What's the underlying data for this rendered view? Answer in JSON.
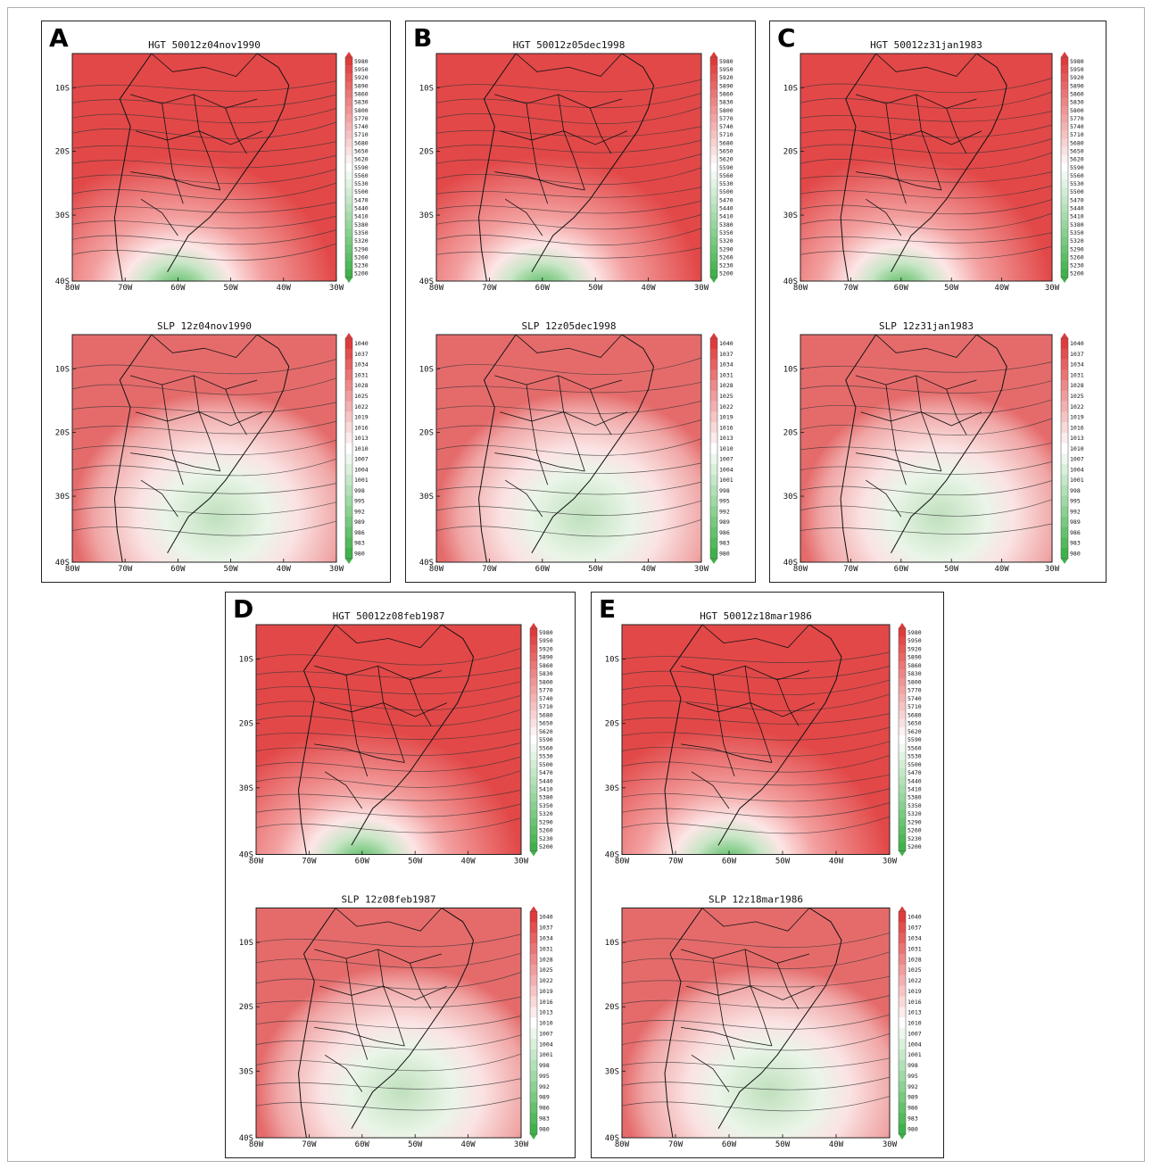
{
  "lon_ticks": [
    "80W",
    "70W",
    "60W",
    "50W",
    "40W",
    "30W"
  ],
  "lat_ticks": [
    "10S",
    "20S",
    "30S",
    "40S"
  ],
  "hgt_colorbar": [
    "5980",
    "5950",
    "5920",
    "5890",
    "5860",
    "5830",
    "5800",
    "5770",
    "5740",
    "5710",
    "5680",
    "5650",
    "5620",
    "5590",
    "5560",
    "5530",
    "5500",
    "5470",
    "5440",
    "5410",
    "5380",
    "5350",
    "5320",
    "5290",
    "5260",
    "5230",
    "5200"
  ],
  "slp_colorbar": [
    "1040",
    "1037",
    "1034",
    "1031",
    "1028",
    "1025",
    "1022",
    "1019",
    "1016",
    "1013",
    "1010",
    "1007",
    "1004",
    "1001",
    "998",
    "995",
    "992",
    "989",
    "986",
    "983",
    "980"
  ],
  "colors": {
    "high": "#e03a3a",
    "mid": "#ffffff",
    "low": "#3fb24a"
  },
  "panels": [
    {
      "id": "A",
      "hgt_title": "HGT 50012z04nov1990",
      "slp_title": "SLP 12z04nov1990"
    },
    {
      "id": "B",
      "hgt_title": "HGT 50012z05dec1998",
      "slp_title": "SLP 12z05dec1998"
    },
    {
      "id": "C",
      "hgt_title": "HGT 50012z31jan1983",
      "slp_title": "SLP 12z31jan1983"
    },
    {
      "id": "D",
      "hgt_title": "HGT 50012z08feb1987",
      "slp_title": "SLP 12z08feb1987"
    },
    {
      "id": "E",
      "hgt_title": "HGT 50012z18mar1986",
      "slp_title": "SLP 12z18mar1986"
    }
  ]
}
